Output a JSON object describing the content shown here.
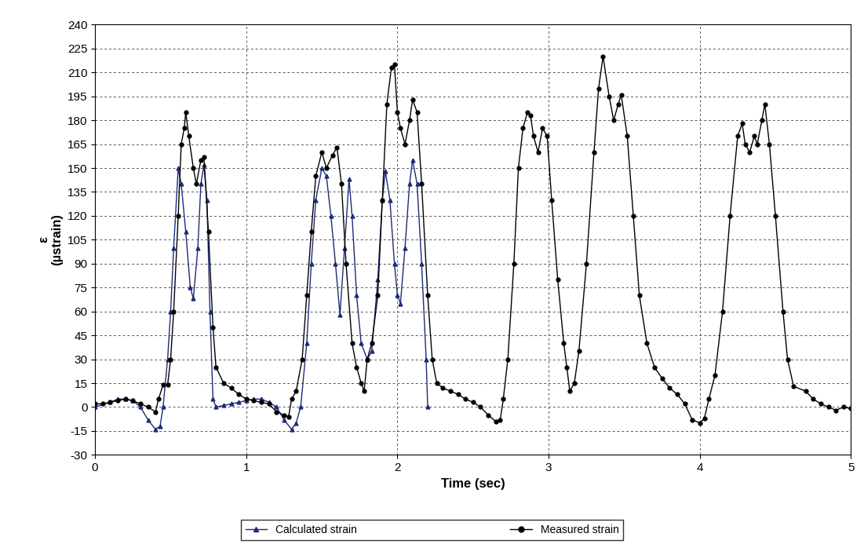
{
  "chart_data": {
    "type": "line",
    "x_label": "Time (sec)",
    "y_label": "ε\n(µstrain)",
    "xlim": [
      0,
      5
    ],
    "xticks": [
      0,
      1,
      2,
      3,
      4,
      5
    ],
    "ylim": [
      -30,
      240
    ],
    "yticks": [
      -30,
      -15,
      0,
      15,
      30,
      45,
      60,
      75,
      90,
      105,
      120,
      135,
      150,
      165,
      180,
      195,
      210,
      225,
      240
    ],
    "grid": true,
    "legend": "lower center",
    "series": [
      {
        "name": "Calculated strain",
        "color": "#1c2a7a",
        "marker": "triangle",
        "line_style": "solid",
        "x": [
          0,
          0.1,
          0.15,
          0.2,
          0.25,
          0.3,
          0.35,
          0.4,
          0.43,
          0.45,
          0.48,
          0.5,
          0.52,
          0.55,
          0.57,
          0.6,
          0.63,
          0.65,
          0.68,
          0.7,
          0.72,
          0.74,
          0.76,
          0.78,
          0.8,
          0.85,
          0.9,
          0.95,
          1.0,
          1.05,
          1.1,
          1.15,
          1.2,
          1.25,
          1.3,
          1.33,
          1.36,
          1.4,
          1.43,
          1.46,
          1.5,
          1.53,
          1.56,
          1.59,
          1.62,
          1.65,
          1.68,
          1.7,
          1.73,
          1.76,
          1.8,
          1.83,
          1.87,
          1.9,
          1.92,
          1.95,
          1.98,
          2.0,
          2.02,
          2.05,
          2.08,
          2.1,
          2.13,
          2.16,
          2.19,
          2.2
        ],
        "values": [
          0,
          3,
          5,
          5,
          4,
          0,
          -8,
          -14,
          -12,
          0,
          30,
          60,
          100,
          150,
          140,
          110,
          75,
          68,
          100,
          140,
          152,
          130,
          60,
          5,
          0,
          1,
          2,
          3,
          4,
          5,
          5,
          3,
          0,
          -8,
          -14,
          -10,
          0,
          40,
          90,
          130,
          150,
          145,
          120,
          90,
          58,
          100,
          143,
          120,
          70,
          40,
          30,
          35,
          80,
          130,
          148,
          130,
          90,
          70,
          65,
          100,
          140,
          155,
          140,
          90,
          30,
          0
        ]
      },
      {
        "name": "Measured strain",
        "color": "#000000",
        "marker": "circle",
        "line_style": "solid",
        "x": [
          0,
          0.05,
          0.1,
          0.15,
          0.2,
          0.25,
          0.3,
          0.35,
          0.4,
          0.42,
          0.45,
          0.48,
          0.5,
          0.52,
          0.55,
          0.57,
          0.59,
          0.6,
          0.62,
          0.65,
          0.67,
          0.7,
          0.72,
          0.75,
          0.78,
          0.8,
          0.85,
          0.9,
          0.95,
          1.0,
          1.05,
          1.1,
          1.15,
          1.2,
          1.25,
          1.28,
          1.3,
          1.33,
          1.37,
          1.4,
          1.43,
          1.46,
          1.5,
          1.53,
          1.57,
          1.6,
          1.63,
          1.66,
          1.7,
          1.73,
          1.76,
          1.78,
          1.8,
          1.83,
          1.87,
          1.9,
          1.93,
          1.96,
          1.98,
          2.0,
          2.02,
          2.05,
          2.08,
          2.1,
          2.13,
          2.16,
          2.2,
          2.23,
          2.26,
          2.3,
          2.35,
          2.4,
          2.45,
          2.5,
          2.55,
          2.6,
          2.65,
          2.68,
          2.7,
          2.73,
          2.77,
          2.8,
          2.83,
          2.86,
          2.88,
          2.9,
          2.93,
          2.96,
          2.99,
          3.02,
          3.06,
          3.1,
          3.12,
          3.14,
          3.17,
          3.2,
          3.25,
          3.3,
          3.33,
          3.36,
          3.4,
          3.43,
          3.46,
          3.48,
          3.52,
          3.56,
          3.6,
          3.65,
          3.7,
          3.75,
          3.8,
          3.85,
          3.9,
          3.95,
          4.0,
          4.03,
          4.06,
          4.1,
          4.15,
          4.2,
          4.25,
          4.28,
          4.3,
          4.33,
          4.36,
          4.38,
          4.41,
          4.43,
          4.46,
          4.5,
          4.55,
          4.58,
          4.62,
          4.7,
          4.75,
          4.8,
          4.85,
          4.9,
          4.95,
          5.0
        ],
        "values": [
          2,
          2,
          3,
          4,
          5,
          4,
          2,
          0,
          -3,
          5,
          14,
          14,
          30,
          60,
          120,
          165,
          175,
          185,
          170,
          150,
          140,
          155,
          157,
          110,
          50,
          25,
          15,
          12,
          8,
          5,
          4,
          3,
          2,
          -3,
          -5,
          -6,
          5,
          10,
          30,
          70,
          110,
          145,
          160,
          150,
          158,
          163,
          140,
          90,
          40,
          25,
          15,
          10,
          30,
          40,
          70,
          130,
          190,
          213,
          215,
          185,
          175,
          165,
          180,
          193,
          185,
          140,
          70,
          30,
          15,
          12,
          10,
          8,
          5,
          3,
          0,
          -5,
          -9,
          -8,
          5,
          30,
          90,
          150,
          175,
          185,
          183,
          170,
          160,
          175,
          170,
          130,
          80,
          40,
          25,
          10,
          15,
          35,
          90,
          160,
          200,
          220,
          195,
          180,
          190,
          196,
          170,
          120,
          70,
          40,
          25,
          18,
          12,
          8,
          2,
          -8,
          -10,
          -7,
          5,
          20,
          60,
          120,
          170,
          178,
          165,
          160,
          170,
          165,
          180,
          190,
          165,
          120,
          60,
          30,
          13,
          10,
          5,
          2,
          0,
          -2,
          0,
          -1
        ]
      }
    ]
  }
}
